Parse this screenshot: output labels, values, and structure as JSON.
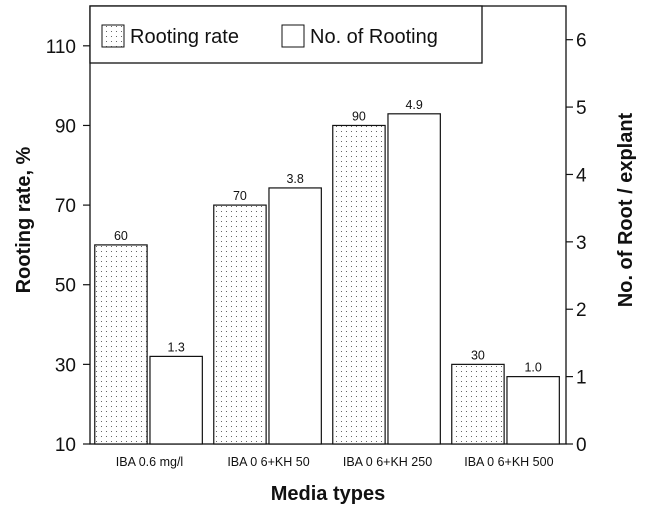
{
  "chart_data": {
    "type": "bar",
    "categories": [
      "IBA 0.6 mg/l",
      "IBA 0 6+KH 50",
      "IBA 0 6+KH 250",
      "IBA 0 6+KH 500"
    ],
    "series": [
      {
        "name": "Rooting rate",
        "axis": "left",
        "values": [
          60,
          70,
          90,
          30
        ],
        "labels": [
          "60",
          "70",
          "90",
          "30"
        ],
        "fill": "dotted"
      },
      {
        "name": "No. of Rooting",
        "axis": "right",
        "values": [
          1.3,
          3.8,
          4.9,
          1.0
        ],
        "labels": [
          "1.3",
          "3.8",
          "4.9",
          "1.0"
        ],
        "fill": "white"
      }
    ],
    "xlabel": "Media types",
    "ylabel": "Rooting rate, %",
    "ylabel_right": "No. of Root / explant",
    "ylim": [
      10,
      120
    ],
    "ylim_right": [
      0,
      6.5
    ],
    "yticks": [
      "10",
      "30",
      "50",
      "70",
      "90",
      "110"
    ],
    "yticks_right": [
      "0",
      "1",
      "2",
      "3",
      "4",
      "5",
      "6"
    ],
    "legend_position": "top-left",
    "grid": false
  }
}
